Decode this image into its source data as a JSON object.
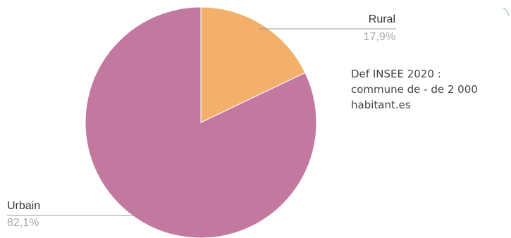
{
  "chart_data": {
    "type": "pie",
    "title": "",
    "start_angle": "top, clockwise",
    "slices": [
      {
        "label": "Rural",
        "value": 17.9,
        "display": "17,9%",
        "color": "#f3b06b"
      },
      {
        "label": "Urbain",
        "value": 82.1,
        "display": "82,1%",
        "color": "#c2789f"
      }
    ],
    "label_line_color": "#999999"
  },
  "note": {
    "lines": [
      "Def INSEE 2020 :",
      "commune de - de 2 000",
      "habitant.es"
    ]
  }
}
